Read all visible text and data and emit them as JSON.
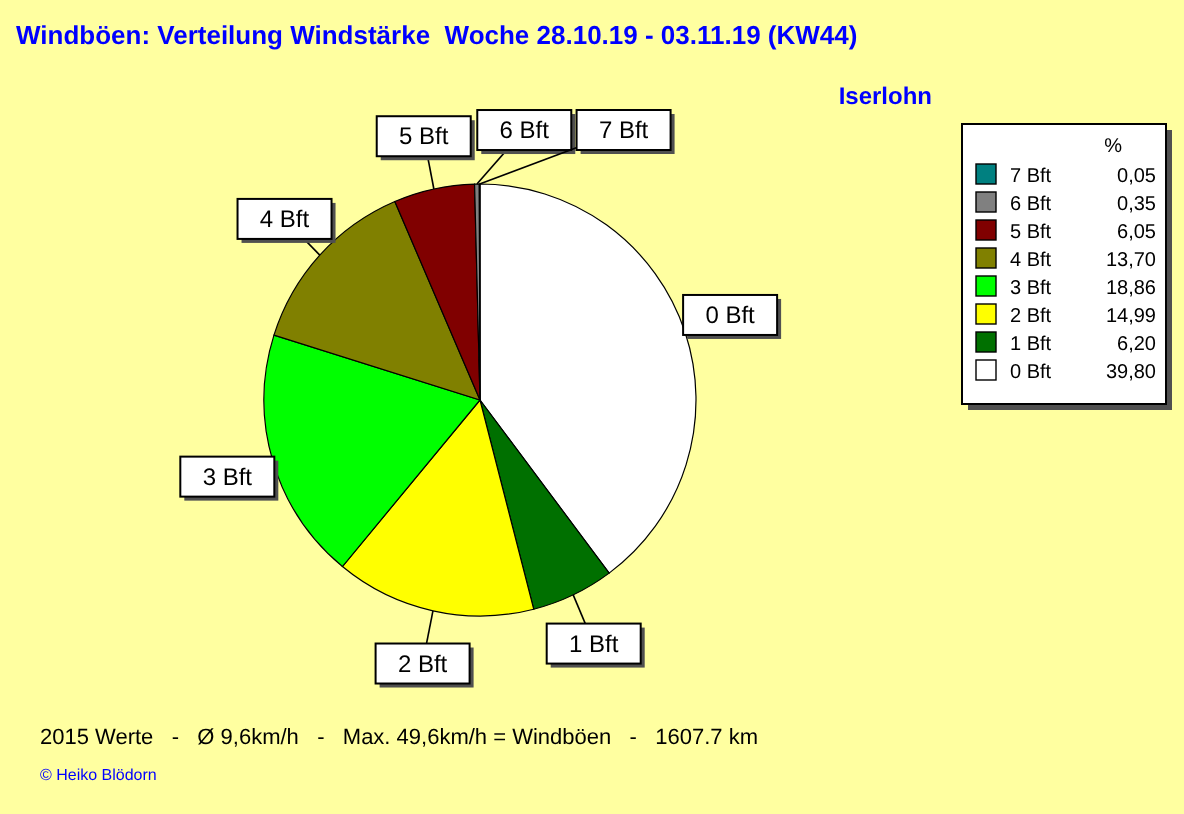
{
  "chart_data": {
    "type": "pie",
    "title": "Windböen: Verteilung Windstärke  Woche 28.10.19 - 03.11.19 (KW44)",
    "subtitle": "Iserlohn",
    "legend_title": "%",
    "categories": [
      "0 Bft",
      "1 Bft",
      "2 Bft",
      "3 Bft",
      "4 Bft",
      "5 Bft",
      "6 Bft",
      "7 Bft"
    ],
    "values": [
      39.8,
      6.2,
      14.99,
      18.86,
      13.7,
      6.05,
      0.35,
      0.05
    ],
    "value_labels": [
      "39,80",
      "6,20",
      "14,99",
      "18,86",
      "13,70",
      "6,05",
      "0,35",
      "0,05"
    ],
    "colors": [
      "#ffffff",
      "#007000",
      "#ffff00",
      "#00ff00",
      "#808000",
      "#800000",
      "#808080",
      "#008080"
    ],
    "legend": "right",
    "annotations": [
      "2015 Werte   -   Ø 9,6km/h   -   Max. 49,6km/h = Windböen   -   1607.7 km",
      "© Heiko Blödorn"
    ]
  }
}
